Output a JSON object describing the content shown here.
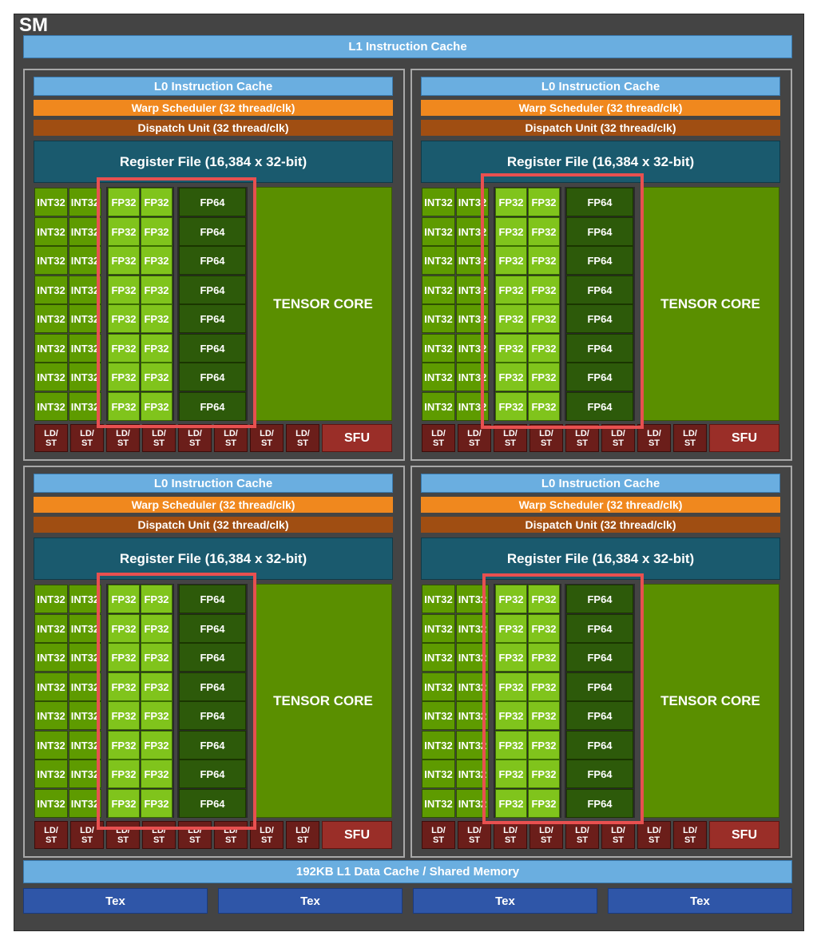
{
  "sm": {
    "title": "SM",
    "l1_instruction_cache": "L1 Instruction Cache",
    "data_cache": "192KB L1 Data Cache / Shared Memory",
    "tex_units": [
      "Tex",
      "Tex",
      "Tex",
      "Tex"
    ]
  },
  "processing_block": {
    "l0_cache": "L0 Instruction Cache",
    "warp_scheduler": "Warp Scheduler (32 thread/clk)",
    "dispatch_unit": "Dispatch Unit (32 thread/clk)",
    "register_file": "Register File (16,384 x 32-bit)",
    "int_label": "INT32",
    "fp32_label": "FP32",
    "fp64_label": "FP64",
    "tensor_core": "TENSOR CORE",
    "ldst_top": "LD/",
    "ldst_bottom": "ST",
    "sfu": "SFU",
    "rows": 8,
    "ldst_count": 8
  },
  "blocks": [
    "top-left",
    "top-right",
    "bottom-left",
    "bottom-right"
  ],
  "colors": {
    "highlight": "#e85050",
    "fp32": "#80c41c",
    "int32": "#5e9b00",
    "fp64": "#2d5a0a",
    "tensor": "#5a8f00",
    "warp_scheduler": "#f0881e",
    "dispatch": "#a04e12",
    "cache": "#6aaee0",
    "tex": "#2f56a8"
  }
}
